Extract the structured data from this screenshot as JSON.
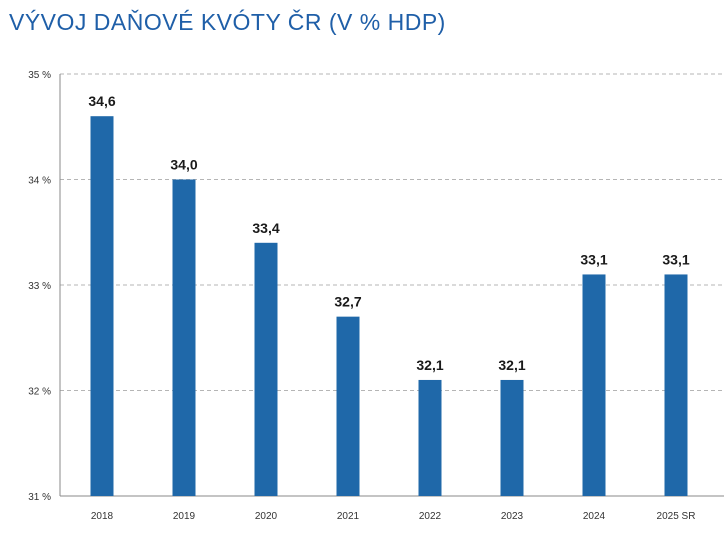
{
  "title": "VÝVOJ DAŇOVÉ KVÓTY ČR (V % HDP)",
  "colors": {
    "bar": "#1f68a9",
    "title": "#1f5fa8",
    "grid": "#b5b5b5"
  },
  "chart_data": {
    "type": "bar",
    "title": "VÝVOJ DAŇOVÉ KVÓTY ČR (V % HDP)",
    "xlabel": "",
    "ylabel": "",
    "categories": [
      "2018",
      "2019",
      "2020",
      "2021",
      "2022",
      "2023",
      "2024",
      "2025 SR"
    ],
    "values": [
      34.6,
      34.0,
      33.4,
      32.7,
      32.1,
      32.1,
      33.1,
      33.1
    ],
    "data_labels": [
      "34,6",
      "34,0",
      "33,4",
      "32,7",
      "32,1",
      "32,1",
      "33,1",
      "33,1"
    ],
    "ylim": [
      31,
      35
    ],
    "yticks": [
      31,
      32,
      33,
      34,
      35
    ],
    "ytick_labels": [
      "31 %",
      "32 %",
      "33 %",
      "34 %",
      "35 %"
    ],
    "grid": true,
    "grid_style": "dashed",
    "legend": false
  }
}
